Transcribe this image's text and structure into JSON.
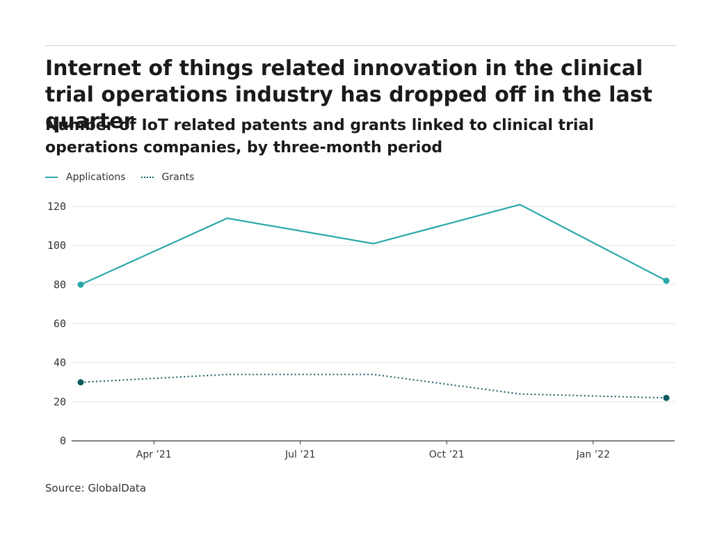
{
  "header": {
    "title": "Internet of things related innovation in the clinical trial operations industry has dropped off in the last quarter",
    "subtitle": "Number of IoT related patents and grants linked to clinical trial operations companies, by three-month period"
  },
  "legend": {
    "applications": "Applications",
    "grants": "Grants"
  },
  "source": "Source: GlobalData",
  "colors": {
    "applications": "#2aa8a8",
    "grants": "#0b5a5e",
    "grid": "#e3e3e3",
    "axis": "#333333"
  },
  "chart_data": {
    "type": "line",
    "title": "Internet of things related innovation in the clinical trial operations industry has dropped off in the last quarter",
    "subtitle": "Number of IoT related patents and grants linked to clinical trial operations companies, by three-month period",
    "xlabel": "",
    "ylabel": "",
    "periods": [
      "Q1 2021",
      "Q2 2021",
      "Q3 2021",
      "Q4 2021",
      "Q1 2022"
    ],
    "x_ticks": [
      "Apr ’21",
      "Jul ’21",
      "Oct ’21",
      "Jan ’22"
    ],
    "y_ticks": [
      0,
      20,
      40,
      60,
      80,
      100,
      120
    ],
    "ylim": [
      0,
      120
    ],
    "grid": true,
    "legend_position": "top-left",
    "series": [
      {
        "name": "Applications",
        "style": "solid",
        "values": [
          80,
          114,
          101,
          121,
          82
        ]
      },
      {
        "name": "Grants",
        "style": "dotted",
        "values": [
          30,
          34,
          34,
          24,
          22
        ]
      }
    ]
  }
}
